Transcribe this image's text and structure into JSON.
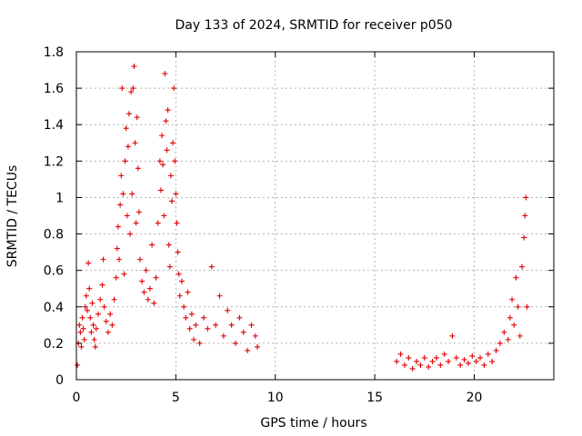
{
  "chart_data": {
    "type": "scatter",
    "title": "Day 133 of 2024, SRMTID for receiver p050",
    "xlabel": "GPS time / hours",
    "ylabel": "SRMTID / TECUs",
    "xlim": [
      0,
      24
    ],
    "ylim": [
      0,
      1.8
    ],
    "x_ticks": [
      0,
      5,
      10,
      15,
      20
    ],
    "x_tick_labels": [
      "0",
      "5",
      "10",
      "15",
      "20"
    ],
    "y_ticks": [
      0,
      0.2,
      0.4,
      0.6,
      0.8,
      1.0,
      1.2,
      1.4,
      1.6,
      1.8
    ],
    "y_tick_labels": [
      "0",
      "0.2",
      "0.4",
      "0.6",
      "0.8",
      "1",
      "1.2",
      "1.4",
      "1.6",
      "1.8"
    ],
    "grid": true,
    "marker": "plus",
    "color": "#e00000",
    "series": [
      {
        "name": "SRMTID",
        "points": [
          [
            0.05,
            0.08
          ],
          [
            0.1,
            0.2
          ],
          [
            0.15,
            0.3
          ],
          [
            0.2,
            0.26
          ],
          [
            0.25,
            0.18
          ],
          [
            0.3,
            0.34
          ],
          [
            0.35,
            0.28
          ],
          [
            0.4,
            0.22
          ],
          [
            0.45,
            0.4
          ],
          [
            0.5,
            0.46
          ],
          [
            0.55,
            0.38
          ],
          [
            0.6,
            0.64
          ],
          [
            0.65,
            0.5
          ],
          [
            0.7,
            0.34
          ],
          [
            0.75,
            0.26
          ],
          [
            0.8,
            0.42
          ],
          [
            0.85,
            0.3
          ],
          [
            0.9,
            0.22
          ],
          [
            0.95,
            0.18
          ],
          [
            1.0,
            0.28
          ],
          [
            1.1,
            0.36
          ],
          [
            1.2,
            0.44
          ],
          [
            1.3,
            0.52
          ],
          [
            1.35,
            0.66
          ],
          [
            1.4,
            0.4
          ],
          [
            1.5,
            0.32
          ],
          [
            1.6,
            0.26
          ],
          [
            1.7,
            0.36
          ],
          [
            1.8,
            0.3
          ],
          [
            1.9,
            0.44
          ],
          [
            2.0,
            0.56
          ],
          [
            2.05,
            0.72
          ],
          [
            2.1,
            0.84
          ],
          [
            2.15,
            0.66
          ],
          [
            2.2,
            0.96
          ],
          [
            2.25,
            1.12
          ],
          [
            2.3,
            1.6
          ],
          [
            2.35,
            1.02
          ],
          [
            2.4,
            0.58
          ],
          [
            2.45,
            1.2
          ],
          [
            2.5,
            1.38
          ],
          [
            2.55,
            0.9
          ],
          [
            2.6,
            1.28
          ],
          [
            2.65,
            1.46
          ],
          [
            2.7,
            0.8
          ],
          [
            2.75,
            1.58
          ],
          [
            2.8,
            1.02
          ],
          [
            2.85,
            1.6
          ],
          [
            2.9,
            1.72
          ],
          [
            2.95,
            1.3
          ],
          [
            3.0,
            0.86
          ],
          [
            3.05,
            1.44
          ],
          [
            3.1,
            1.16
          ],
          [
            3.15,
            0.92
          ],
          [
            3.2,
            0.66
          ],
          [
            3.3,
            0.54
          ],
          [
            3.4,
            0.48
          ],
          [
            3.5,
            0.6
          ],
          [
            3.6,
            0.44
          ],
          [
            3.7,
            0.5
          ],
          [
            3.8,
            0.74
          ],
          [
            3.9,
            0.42
          ],
          [
            4.0,
            0.56
          ],
          [
            4.1,
            0.86
          ],
          [
            4.2,
            1.2
          ],
          [
            4.25,
            1.04
          ],
          [
            4.3,
            1.34
          ],
          [
            4.35,
            1.18
          ],
          [
            4.4,
            0.9
          ],
          [
            4.45,
            1.68
          ],
          [
            4.5,
            1.42
          ],
          [
            4.55,
            1.26
          ],
          [
            4.6,
            1.48
          ],
          [
            4.65,
            0.74
          ],
          [
            4.7,
            0.62
          ],
          [
            4.75,
            1.12
          ],
          [
            4.8,
            0.98
          ],
          [
            4.85,
            1.3
          ],
          [
            4.9,
            1.6
          ],
          [
            4.95,
            1.2
          ],
          [
            5.0,
            1.02
          ],
          [
            5.05,
            0.86
          ],
          [
            5.1,
            0.7
          ],
          [
            5.15,
            0.58
          ],
          [
            5.2,
            0.46
          ],
          [
            5.3,
            0.54
          ],
          [
            5.4,
            0.4
          ],
          [
            5.5,
            0.34
          ],
          [
            5.6,
            0.48
          ],
          [
            5.7,
            0.28
          ],
          [
            5.8,
            0.36
          ],
          [
            5.9,
            0.22
          ],
          [
            6.0,
            0.3
          ],
          [
            6.2,
            0.2
          ],
          [
            6.4,
            0.34
          ],
          [
            6.6,
            0.28
          ],
          [
            6.8,
            0.62
          ],
          [
            7.0,
            0.3
          ],
          [
            7.2,
            0.46
          ],
          [
            7.4,
            0.24
          ],
          [
            7.6,
            0.38
          ],
          [
            7.8,
            0.3
          ],
          [
            8.0,
            0.2
          ],
          [
            8.2,
            0.34
          ],
          [
            8.4,
            0.26
          ],
          [
            8.6,
            0.16
          ],
          [
            8.8,
            0.3
          ],
          [
            9.0,
            0.24
          ],
          [
            9.1,
            0.18
          ],
          [
            16.1,
            0.1
          ],
          [
            16.3,
            0.14
          ],
          [
            16.5,
            0.08
          ],
          [
            16.7,
            0.12
          ],
          [
            16.9,
            0.06
          ],
          [
            17.1,
            0.1
          ],
          [
            17.3,
            0.08
          ],
          [
            17.5,
            0.12
          ],
          [
            17.7,
            0.07
          ],
          [
            17.9,
            0.1
          ],
          [
            18.1,
            0.12
          ],
          [
            18.3,
            0.08
          ],
          [
            18.5,
            0.14
          ],
          [
            18.7,
            0.1
          ],
          [
            18.9,
            0.24
          ],
          [
            19.1,
            0.12
          ],
          [
            19.3,
            0.08
          ],
          [
            19.5,
            0.11
          ],
          [
            19.7,
            0.09
          ],
          [
            19.9,
            0.13
          ],
          [
            20.1,
            0.1
          ],
          [
            20.3,
            0.12
          ],
          [
            20.5,
            0.08
          ],
          [
            20.7,
            0.14
          ],
          [
            20.9,
            0.1
          ],
          [
            21.1,
            0.16
          ],
          [
            21.3,
            0.2
          ],
          [
            21.5,
            0.26
          ],
          [
            21.7,
            0.22
          ],
          [
            21.8,
            0.34
          ],
          [
            21.9,
            0.44
          ],
          [
            22.0,
            0.3
          ],
          [
            22.1,
            0.56
          ],
          [
            22.2,
            0.4
          ],
          [
            22.3,
            0.24
          ],
          [
            22.4,
            0.62
          ],
          [
            22.5,
            0.78
          ],
          [
            22.55,
            0.9
          ],
          [
            22.6,
            1.0
          ],
          [
            22.65,
            0.4
          ]
        ]
      }
    ]
  }
}
